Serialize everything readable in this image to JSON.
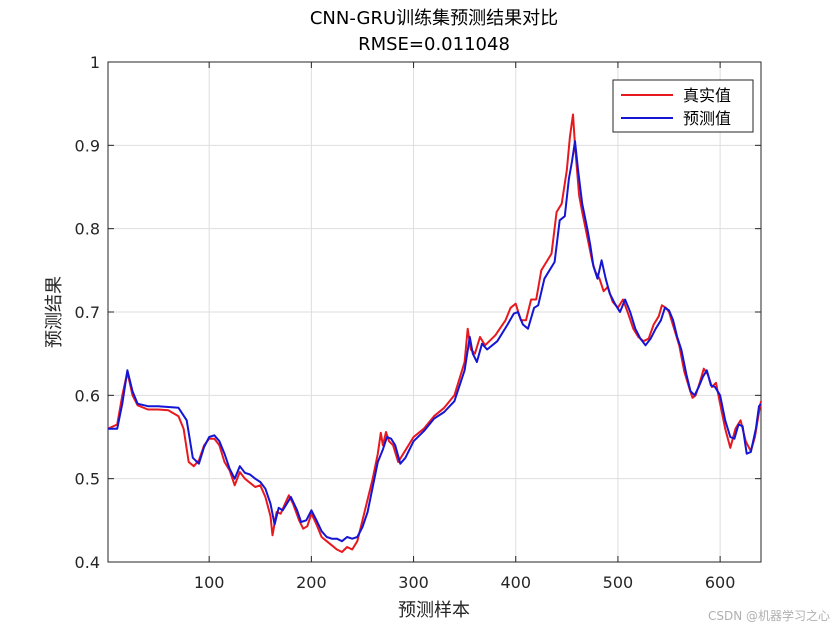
{
  "chart_data": {
    "type": "line",
    "title": "CNN-GRU训练集预测结果对比",
    "subtitle": "RMSE=0.011048",
    "xlabel": "预测样本",
    "ylabel": "预测结果",
    "xlim": [
      1,
      640
    ],
    "ylim": [
      0.4,
      1.0
    ],
    "xticks": [
      100,
      200,
      300,
      400,
      500,
      600
    ],
    "yticks": [
      0.4,
      0.5,
      0.6,
      0.7,
      0.8,
      0.9,
      1.0
    ],
    "ytick_labels": [
      "0.4",
      "0.5",
      "0.6",
      "0.7",
      "0.8",
      "0.9",
      "1"
    ],
    "grid": true,
    "legend_position": "top-right",
    "series": [
      {
        "name": "真实值",
        "color": "#e8191e",
        "points": [
          [
            1,
            0.56
          ],
          [
            10,
            0.565
          ],
          [
            15,
            0.6
          ],
          [
            20,
            0.628
          ],
          [
            25,
            0.6
          ],
          [
            30,
            0.588
          ],
          [
            40,
            0.583
          ],
          [
            50,
            0.583
          ],
          [
            60,
            0.582
          ],
          [
            70,
            0.575
          ],
          [
            75,
            0.56
          ],
          [
            80,
            0.52
          ],
          [
            85,
            0.515
          ],
          [
            90,
            0.522
          ],
          [
            95,
            0.54
          ],
          [
            100,
            0.548
          ],
          [
            105,
            0.548
          ],
          [
            110,
            0.54
          ],
          [
            115,
            0.52
          ],
          [
            120,
            0.51
          ],
          [
            125,
            0.492
          ],
          [
            130,
            0.508
          ],
          [
            135,
            0.5
          ],
          [
            140,
            0.495
          ],
          [
            145,
            0.49
          ],
          [
            150,
            0.492
          ],
          [
            155,
            0.478
          ],
          [
            160,
            0.455
          ],
          [
            162,
            0.432
          ],
          [
            166,
            0.46
          ],
          [
            170,
            0.458
          ],
          [
            175,
            0.472
          ],
          [
            178,
            0.48
          ],
          [
            182,
            0.47
          ],
          [
            188,
            0.45
          ],
          [
            192,
            0.44
          ],
          [
            196,
            0.443
          ],
          [
            200,
            0.458
          ],
          [
            205,
            0.445
          ],
          [
            210,
            0.43
          ],
          [
            215,
            0.425
          ],
          [
            220,
            0.42
          ],
          [
            225,
            0.415
          ],
          [
            230,
            0.412
          ],
          [
            235,
            0.418
          ],
          [
            240,
            0.415
          ],
          [
            245,
            0.425
          ],
          [
            250,
            0.45
          ],
          [
            255,
            0.475
          ],
          [
            260,
            0.5
          ],
          [
            265,
            0.53
          ],
          [
            268,
            0.555
          ],
          [
            270,
            0.54
          ],
          [
            273,
            0.556
          ],
          [
            276,
            0.545
          ],
          [
            280,
            0.54
          ],
          [
            285,
            0.52
          ],
          [
            290,
            0.53
          ],
          [
            300,
            0.55
          ],
          [
            310,
            0.56
          ],
          [
            320,
            0.575
          ],
          [
            330,
            0.585
          ],
          [
            340,
            0.6
          ],
          [
            350,
            0.64
          ],
          [
            353,
            0.68
          ],
          [
            356,
            0.655
          ],
          [
            360,
            0.65
          ],
          [
            365,
            0.67
          ],
          [
            370,
            0.66
          ],
          [
            380,
            0.672
          ],
          [
            390,
            0.69
          ],
          [
            395,
            0.705
          ],
          [
            400,
            0.71
          ],
          [
            405,
            0.69
          ],
          [
            410,
            0.69
          ],
          [
            415,
            0.715
          ],
          [
            420,
            0.715
          ],
          [
            425,
            0.75
          ],
          [
            430,
            0.76
          ],
          [
            435,
            0.77
          ],
          [
            440,
            0.82
          ],
          [
            445,
            0.83
          ],
          [
            450,
            0.87
          ],
          [
            453,
            0.91
          ],
          [
            456,
            0.937
          ],
          [
            458,
            0.9
          ],
          [
            462,
            0.84
          ],
          [
            465,
            0.82
          ],
          [
            470,
            0.79
          ],
          [
            475,
            0.76
          ],
          [
            478,
            0.748
          ],
          [
            482,
            0.74
          ],
          [
            486,
            0.725
          ],
          [
            490,
            0.73
          ],
          [
            495,
            0.712
          ],
          [
            500,
            0.705
          ],
          [
            505,
            0.715
          ],
          [
            510,
            0.698
          ],
          [
            515,
            0.68
          ],
          [
            520,
            0.67
          ],
          [
            525,
            0.665
          ],
          [
            530,
            0.668
          ],
          [
            535,
            0.685
          ],
          [
            540,
            0.695
          ],
          [
            543,
            0.708
          ],
          [
            547,
            0.705
          ],
          [
            550,
            0.7
          ],
          [
            555,
            0.68
          ],
          [
            560,
            0.66
          ],
          [
            565,
            0.628
          ],
          [
            570,
            0.608
          ],
          [
            573,
            0.597
          ],
          [
            576,
            0.6
          ],
          [
            580,
            0.615
          ],
          [
            584,
            0.632
          ],
          [
            588,
            0.625
          ],
          [
            592,
            0.61
          ],
          [
            596,
            0.615
          ],
          [
            600,
            0.59
          ],
          [
            605,
            0.56
          ],
          [
            610,
            0.537
          ],
          [
            615,
            0.56
          ],
          [
            620,
            0.57
          ],
          [
            625,
            0.545
          ],
          [
            630,
            0.533
          ],
          [
            634,
            0.55
          ],
          [
            638,
            0.58
          ],
          [
            640,
            0.593
          ]
        ]
      },
      {
        "name": "预测值",
        "color": "#1515d4",
        "points": [
          [
            1,
            0.56
          ],
          [
            10,
            0.56
          ],
          [
            15,
            0.59
          ],
          [
            20,
            0.63
          ],
          [
            25,
            0.605
          ],
          [
            30,
            0.59
          ],
          [
            40,
            0.587
          ],
          [
            50,
            0.587
          ],
          [
            60,
            0.586
          ],
          [
            70,
            0.585
          ],
          [
            78,
            0.57
          ],
          [
            84,
            0.525
          ],
          [
            90,
            0.518
          ],
          [
            95,
            0.538
          ],
          [
            100,
            0.55
          ],
          [
            105,
            0.552
          ],
          [
            110,
            0.545
          ],
          [
            115,
            0.53
          ],
          [
            120,
            0.512
          ],
          [
            125,
            0.5
          ],
          [
            130,
            0.515
          ],
          [
            135,
            0.507
          ],
          [
            140,
            0.505
          ],
          [
            145,
            0.5
          ],
          [
            150,
            0.496
          ],
          [
            155,
            0.488
          ],
          [
            160,
            0.47
          ],
          [
            164,
            0.445
          ],
          [
            168,
            0.465
          ],
          [
            172,
            0.462
          ],
          [
            176,
            0.47
          ],
          [
            180,
            0.478
          ],
          [
            186,
            0.462
          ],
          [
            190,
            0.448
          ],
          [
            195,
            0.45
          ],
          [
            200,
            0.462
          ],
          [
            205,
            0.45
          ],
          [
            210,
            0.437
          ],
          [
            215,
            0.43
          ],
          [
            220,
            0.428
          ],
          [
            225,
            0.428
          ],
          [
            230,
            0.425
          ],
          [
            235,
            0.43
          ],
          [
            240,
            0.428
          ],
          [
            245,
            0.43
          ],
          [
            250,
            0.442
          ],
          [
            255,
            0.46
          ],
          [
            260,
            0.49
          ],
          [
            265,
            0.52
          ],
          [
            270,
            0.535
          ],
          [
            274,
            0.55
          ],
          [
            278,
            0.548
          ],
          [
            282,
            0.54
          ],
          [
            287,
            0.518
          ],
          [
            292,
            0.525
          ],
          [
            300,
            0.545
          ],
          [
            310,
            0.557
          ],
          [
            320,
            0.572
          ],
          [
            330,
            0.58
          ],
          [
            340,
            0.593
          ],
          [
            350,
            0.63
          ],
          [
            355,
            0.67
          ],
          [
            358,
            0.65
          ],
          [
            362,
            0.64
          ],
          [
            367,
            0.662
          ],
          [
            372,
            0.655
          ],
          [
            382,
            0.665
          ],
          [
            392,
            0.685
          ],
          [
            398,
            0.698
          ],
          [
            402,
            0.7
          ],
          [
            407,
            0.685
          ],
          [
            412,
            0.68
          ],
          [
            418,
            0.705
          ],
          [
            422,
            0.708
          ],
          [
            428,
            0.74
          ],
          [
            433,
            0.75
          ],
          [
            438,
            0.76
          ],
          [
            443,
            0.81
          ],
          [
            448,
            0.815
          ],
          [
            452,
            0.86
          ],
          [
            455,
            0.88
          ],
          [
            458,
            0.905
          ],
          [
            461,
            0.87
          ],
          [
            465,
            0.83
          ],
          [
            470,
            0.8
          ],
          [
            473,
            0.78
          ],
          [
            476,
            0.755
          ],
          [
            480,
            0.74
          ],
          [
            484,
            0.762
          ],
          [
            488,
            0.74
          ],
          [
            492,
            0.722
          ],
          [
            497,
            0.71
          ],
          [
            502,
            0.7
          ],
          [
            507,
            0.715
          ],
          [
            512,
            0.7
          ],
          [
            517,
            0.68
          ],
          [
            522,
            0.668
          ],
          [
            527,
            0.66
          ],
          [
            532,
            0.668
          ],
          [
            537,
            0.68
          ],
          [
            542,
            0.69
          ],
          [
            546,
            0.705
          ],
          [
            550,
            0.702
          ],
          [
            554,
            0.69
          ],
          [
            558,
            0.67
          ],
          [
            562,
            0.655
          ],
          [
            567,
            0.625
          ],
          [
            571,
            0.605
          ],
          [
            575,
            0.6
          ],
          [
            579,
            0.61
          ],
          [
            583,
            0.622
          ],
          [
            587,
            0.63
          ],
          [
            591,
            0.612
          ],
          [
            595,
            0.61
          ],
          [
            600,
            0.6
          ],
          [
            605,
            0.57
          ],
          [
            610,
            0.55
          ],
          [
            614,
            0.548
          ],
          [
            618,
            0.565
          ],
          [
            622,
            0.563
          ],
          [
            626,
            0.53
          ],
          [
            630,
            0.532
          ],
          [
            635,
            0.56
          ],
          [
            638,
            0.587
          ],
          [
            640,
            0.59
          ]
        ]
      }
    ]
  },
  "watermark": "CSDN @机器学习之心"
}
